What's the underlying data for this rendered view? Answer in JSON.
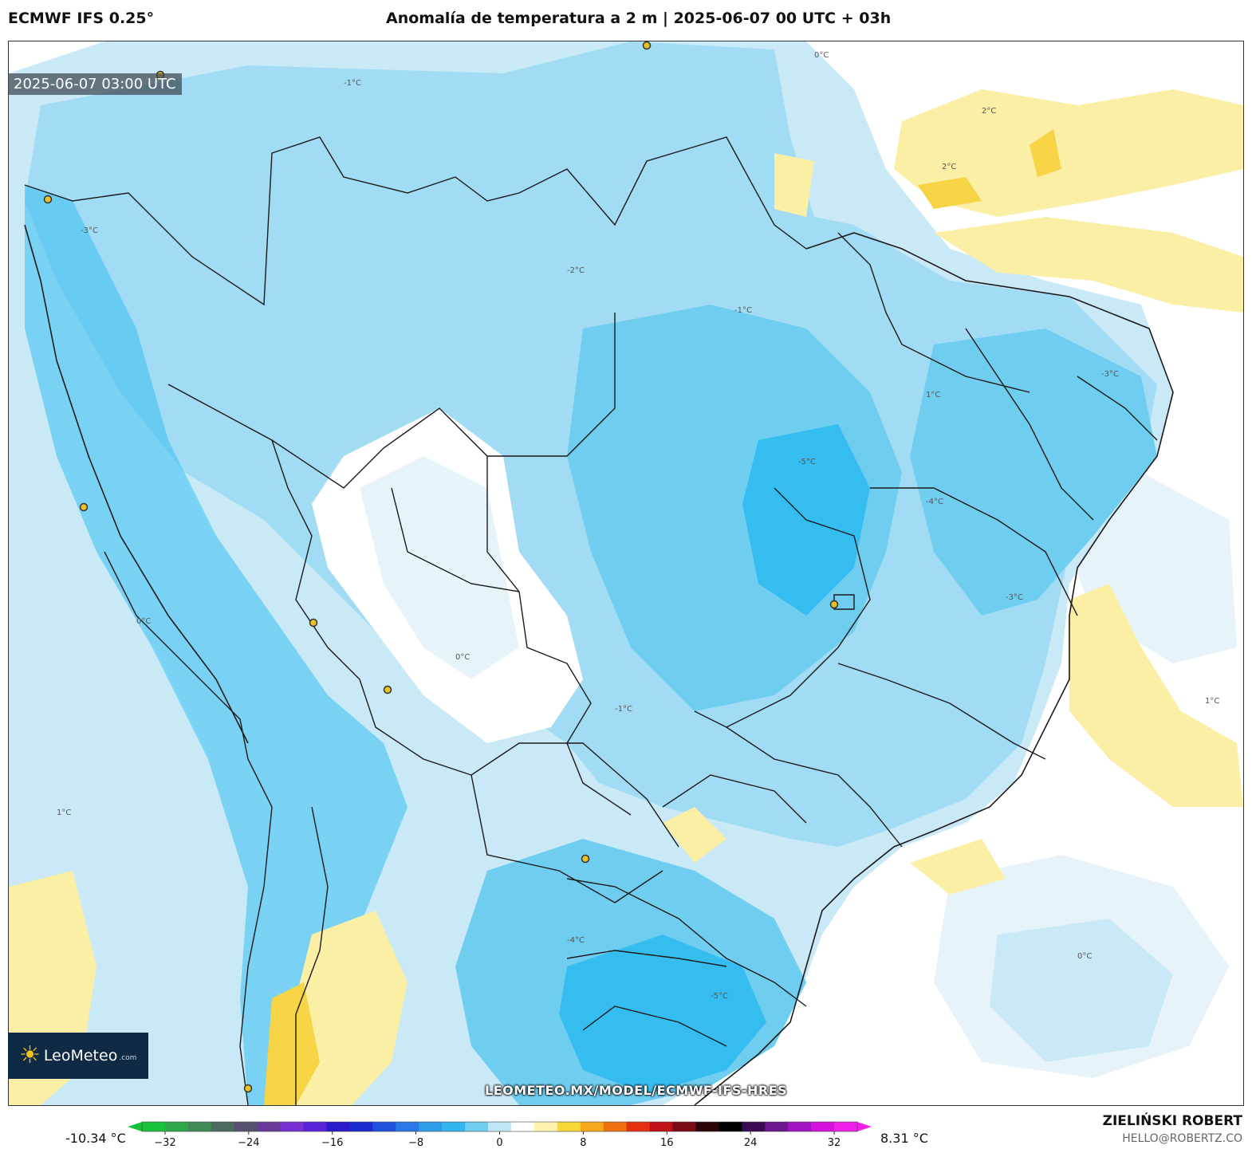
{
  "header": {
    "model": "ECMWF IFS 0.25°",
    "title": "Anomalía de temperatura a 2 m | 2025-06-07 00 UTC + 03h"
  },
  "map": {
    "valid_time": "2025-06-07 03:00 UTC",
    "contour_labels": [
      "0°C",
      "-1°C",
      "-2°C",
      "-3°C",
      "-4°C",
      "-5°C",
      "1°C",
      "2°C"
    ],
    "colors": {
      "warm_1": "#fbeea5",
      "warm_2": "#f6d445",
      "neutral": "#ffffff",
      "cool_1": "#e6f4fa",
      "cool_2": "#c9e9f6",
      "cool_3": "#a2dcf4",
      "cool_4": "#6fcdf0",
      "cool_5": "#36bdf0",
      "border": "#1a1a1a"
    },
    "city_marker_color": "#e8c02b"
  },
  "logo": {
    "name": "LeoMeteo",
    "domain": ".com"
  },
  "source_url": "LEOMETEO.MX/MODEL/ECMWF-IFS-HRES",
  "colorbar": {
    "min_label": "-10.34 °C",
    "max_label": "8.31 °C",
    "ticks": [
      "−32",
      "−24",
      "−16",
      "−8",
      "0",
      "8",
      "16",
      "24",
      "32"
    ],
    "colors": [
      "#19c23a",
      "#2fa84a",
      "#3f8a55",
      "#4b6b60",
      "#585071",
      "#6a3a9a",
      "#7a2fd0",
      "#5a22d8",
      "#2a1acb",
      "#1a2bd0",
      "#2150de",
      "#2a78e6",
      "#2e9ce9",
      "#33b6ee",
      "#6fcdf0",
      "#bfe6f6",
      "#ffffff",
      "#fff3b0",
      "#f8d838",
      "#f5a81a",
      "#ee7010",
      "#e43010",
      "#c01018",
      "#7a0a14",
      "#2a0508",
      "#000000",
      "#3a0a52",
      "#6c1690",
      "#a014c2",
      "#d410dc",
      "#f020ea"
    ]
  },
  "author": {
    "name": "ZIELIŃSKI ROBERT",
    "email": "HELLO@ROBERTZ.CO"
  }
}
